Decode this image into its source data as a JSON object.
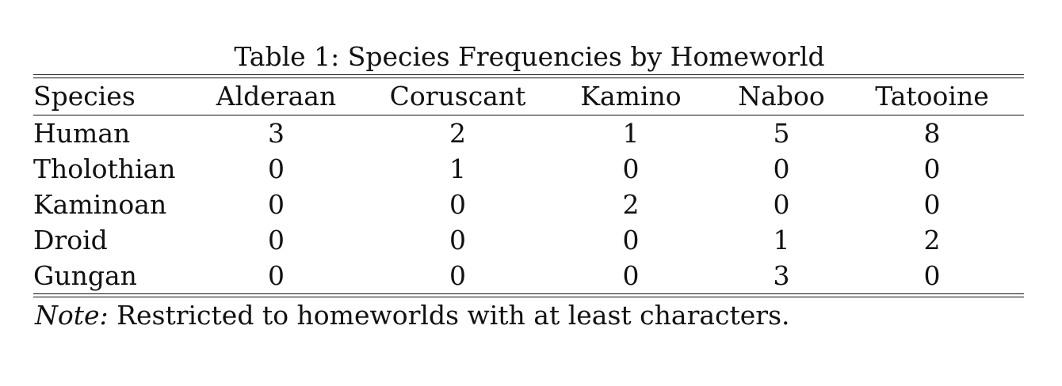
{
  "table": {
    "caption": "Table 1: Species Frequencies by Homeworld",
    "columns": [
      "Species",
      "Alderaan",
      "Coruscant",
      "Kamino",
      "Naboo",
      "Tatooine"
    ],
    "rows": [
      {
        "species": "Human",
        "values": [
          "3",
          "2",
          "1",
          "5",
          "8"
        ]
      },
      {
        "species": "Tholothian",
        "values": [
          "0",
          "1",
          "0",
          "0",
          "0"
        ]
      },
      {
        "species": "Kaminoan",
        "values": [
          "0",
          "0",
          "2",
          "0",
          "0"
        ]
      },
      {
        "species": "Droid",
        "values": [
          "0",
          "0",
          "0",
          "1",
          "2"
        ]
      },
      {
        "species": "Gungan",
        "values": [
          "0",
          "0",
          "0",
          "3",
          "0"
        ]
      }
    ],
    "note_label": "Note:",
    "note_text": " Restricted to homeworlds with at least characters."
  }
}
